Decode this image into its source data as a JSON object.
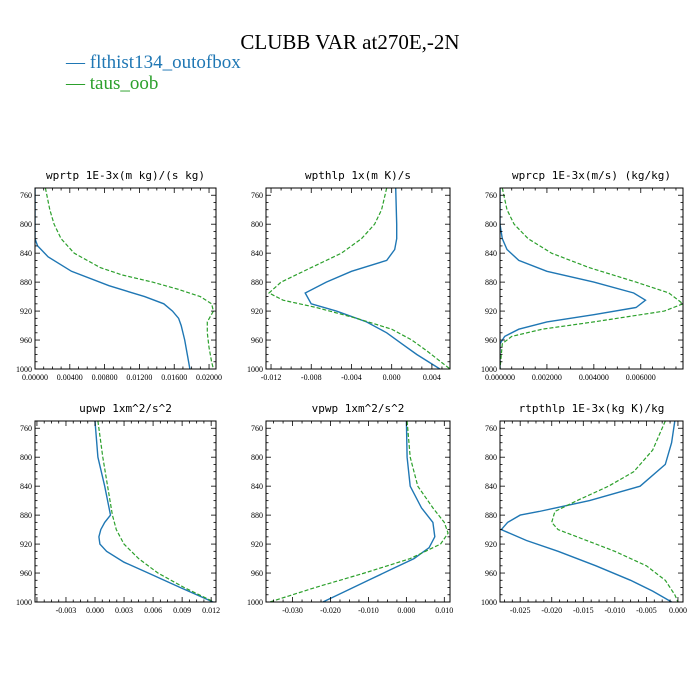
{
  "title": "CLUBB VAR at270E,-2N",
  "colors": {
    "series0": "#1f77b4",
    "series1": "#2ca02c"
  },
  "legend": [
    {
      "name": "flthist134_outofbox",
      "color": "#1f77b4",
      "style": "solid"
    },
    {
      "name": "taus_oob",
      "color": "#2ca02c",
      "style": "dashed"
    }
  ],
  "chart_data": [
    {
      "type": "line",
      "title": "wprtp  1E-3x(m kg)/(s kg)",
      "ylim": [
        1000,
        750
      ],
      "yticks": [
        760,
        800,
        840,
        880,
        920,
        960,
        1000
      ],
      "xlim": [
        0,
        0.0208
      ],
      "xticks": [
        0,
        0.004,
        0.008,
        0.012,
        0.016,
        0.02
      ],
      "xticklabels": [
        "0.00000",
        "0.00400",
        "0.00800",
        "0.01200",
        "0.01600",
        "0.02000"
      ],
      "series": [
        {
          "name": "flthist134_outofbox",
          "y": [
            750,
            820,
            830,
            845,
            865,
            885,
            900,
            910,
            920,
            930,
            940,
            960,
            980,
            1000
          ],
          "x": [
            0.0,
            0.0,
            0.0003,
            0.0015,
            0.0042,
            0.0085,
            0.0126,
            0.0148,
            0.0158,
            0.0165,
            0.0168,
            0.0172,
            0.0175,
            0.0178
          ]
        },
        {
          "name": "taus_oob",
          "y": [
            750,
            780,
            800,
            820,
            840,
            860,
            870,
            880,
            890,
            900,
            910,
            920,
            935,
            950,
            970,
            990,
            1000
          ],
          "x": [
            0.0012,
            0.0017,
            0.0022,
            0.003,
            0.0045,
            0.0075,
            0.01,
            0.0135,
            0.0165,
            0.019,
            0.0203,
            0.0205,
            0.0198,
            0.0198,
            0.02,
            0.0203,
            0.0205
          ]
        }
      ]
    },
    {
      "type": "line",
      "title": "wpthlp  1x(m K)/s",
      "ylim": [
        1000,
        750
      ],
      "yticks": [
        760,
        800,
        840,
        880,
        920,
        960,
        1000
      ],
      "xlim": [
        -0.0125,
        0.0058
      ],
      "xticks": [
        -0.012,
        -0.008,
        -0.004,
        0.0,
        0.004
      ],
      "xticklabels": [
        "-0.012",
        "-0.008",
        "-0.004",
        "0.000",
        "0.004"
      ],
      "series": [
        {
          "name": "flthist134_outofbox",
          "y": [
            750,
            800,
            820,
            835,
            850,
            865,
            880,
            895,
            910,
            920,
            935,
            950,
            965,
            980,
            1000
          ],
          "x": [
            0.0004,
            0.0005,
            0.0005,
            0.0003,
            -0.0005,
            -0.004,
            -0.0065,
            -0.0086,
            -0.008,
            -0.0055,
            -0.0025,
            -0.0005,
            0.001,
            0.0025,
            0.0048
          ]
        },
        {
          "name": "taus_oob",
          "y": [
            750,
            780,
            800,
            820,
            840,
            860,
            880,
            895,
            905,
            915,
            930,
            945,
            960,
            975,
            1000
          ],
          "x": [
            -0.0005,
            -0.001,
            -0.0017,
            -0.003,
            -0.005,
            -0.008,
            -0.011,
            -0.0122,
            -0.0108,
            -0.0075,
            -0.0035,
            0.0,
            0.002,
            0.0035,
            0.0058
          ]
        }
      ]
    },
    {
      "type": "line",
      "title": "wprcp  1E-3x(m/s) (kg/kg)",
      "ylim": [
        1000,
        750
      ],
      "yticks": [
        760,
        800,
        840,
        880,
        920,
        960,
        1000
      ],
      "xlim": [
        0,
        0.0078
      ],
      "xticks": [
        0,
        0.002,
        0.004,
        0.006
      ],
      "xticklabels": [
        "0.000000",
        "0.002000",
        "0.004000",
        "0.006000"
      ],
      "series": [
        {
          "name": "flthist134_outofbox",
          "y": [
            750,
            800,
            820,
            835,
            850,
            865,
            880,
            895,
            905,
            915,
            925,
            935,
            945,
            955,
            965,
            1000
          ],
          "x": [
            0.0,
            0.0,
            0.0001,
            0.0003,
            0.0008,
            0.002,
            0.004,
            0.0057,
            0.0062,
            0.0058,
            0.004,
            0.002,
            0.0008,
            0.0002,
            0.0,
            0.0
          ]
        },
        {
          "name": "taus_oob",
          "y": [
            750,
            780,
            800,
            820,
            840,
            860,
            880,
            895,
            910,
            920,
            935,
            945,
            955,
            965,
            1000
          ],
          "x": [
            0.0001,
            0.0003,
            0.0006,
            0.0012,
            0.0022,
            0.0038,
            0.0058,
            0.0072,
            0.0078,
            0.007,
            0.004,
            0.0018,
            0.0005,
            0.0001,
            0.0
          ]
        }
      ]
    },
    {
      "type": "line",
      "title": "upwp  1xm^2/s^2",
      "ylim": [
        1000,
        750
      ],
      "yticks": [
        760,
        800,
        840,
        880,
        920,
        960,
        1000
      ],
      "xlim": [
        -0.0062,
        0.0125
      ],
      "xticks": [
        -0.003,
        0.0,
        0.003,
        0.006,
        0.009,
        0.012
      ],
      "xticklabels": [
        "-0.003",
        "0.000",
        "0.003",
        "0.006",
        "0.009",
        "0.012"
      ],
      "series": [
        {
          "name": "flthist134_outofbox",
          "y": [
            750,
            800,
            840,
            860,
            880,
            890,
            900,
            910,
            920,
            930,
            945,
            960,
            980,
            1000
          ],
          "x": [
            0.0,
            0.0003,
            0.001,
            0.0013,
            0.0016,
            0.001,
            0.0006,
            0.0004,
            0.0005,
            0.0012,
            0.003,
            0.0055,
            0.0088,
            0.0122
          ]
        },
        {
          "name": "taus_oob",
          "y": [
            750,
            800,
            840,
            880,
            900,
            920,
            940,
            960,
            980,
            1000
          ],
          "x": [
            0.0003,
            0.0008,
            0.0013,
            0.0018,
            0.0022,
            0.003,
            0.0045,
            0.0065,
            0.0092,
            0.0123
          ]
        }
      ]
    },
    {
      "type": "line",
      "title": "vpwp  1xm^2/s^2",
      "ylim": [
        1000,
        750
      ],
      "yticks": [
        760,
        800,
        840,
        880,
        920,
        960,
        1000
      ],
      "xlim": [
        -0.037,
        0.0115
      ],
      "xticks": [
        -0.03,
        -0.02,
        -0.01,
        0.0,
        0.01
      ],
      "xticklabels": [
        "-0.030",
        "-0.020",
        "-0.010",
        "0.000",
        "0.010"
      ],
      "series": [
        {
          "name": "flthist134_outofbox",
          "y": [
            750,
            800,
            840,
            870,
            890,
            910,
            925,
            940,
            955,
            970,
            985,
            1000
          ],
          "x": [
            0.0,
            0.0002,
            0.001,
            0.004,
            0.007,
            0.0075,
            0.006,
            0.002,
            -0.004,
            -0.01,
            -0.016,
            -0.022
          ]
        },
        {
          "name": "taus_oob",
          "y": [
            750,
            800,
            840,
            870,
            890,
            905,
            920,
            940,
            960,
            980,
            1000
          ],
          "x": [
            0.0002,
            0.001,
            0.003,
            0.007,
            0.01,
            0.011,
            0.009,
            0.001,
            -0.011,
            -0.024,
            -0.036
          ]
        }
      ]
    },
    {
      "type": "line",
      "title": "rtpthlp  1E-3x(kg K)/kg",
      "ylim": [
        1000,
        750
      ],
      "yticks": [
        760,
        800,
        840,
        880,
        920,
        960,
        1000
      ],
      "xlim": [
        -0.0282,
        0.0008
      ],
      "xticks": [
        -0.025,
        -0.02,
        -0.015,
        -0.01,
        -0.005,
        0.0
      ],
      "xticklabels": [
        "-0.025",
        "-0.020",
        "-0.015",
        "-0.010",
        "-0.005",
        "0.000"
      ],
      "series": [
        {
          "name": "flthist134_outofbox",
          "y": [
            750,
            780,
            810,
            840,
            860,
            875,
            880,
            890,
            900,
            915,
            930,
            950,
            970,
            985,
            1000
          ],
          "x": [
            -0.0005,
            -0.001,
            -0.002,
            -0.006,
            -0.014,
            -0.022,
            -0.025,
            -0.027,
            -0.028,
            -0.024,
            -0.019,
            -0.013,
            -0.0075,
            -0.004,
            -0.001
          ]
        },
        {
          "name": "taus_oob",
          "y": [
            750,
            790,
            820,
            840,
            860,
            875,
            890,
            900,
            910,
            930,
            950,
            970,
            990,
            1000
          ],
          "x": [
            -0.002,
            -0.004,
            -0.007,
            -0.011,
            -0.016,
            -0.0195,
            -0.02,
            -0.019,
            -0.016,
            -0.01,
            -0.005,
            -0.002,
            -0.0005,
            0.0
          ]
        }
      ]
    }
  ]
}
